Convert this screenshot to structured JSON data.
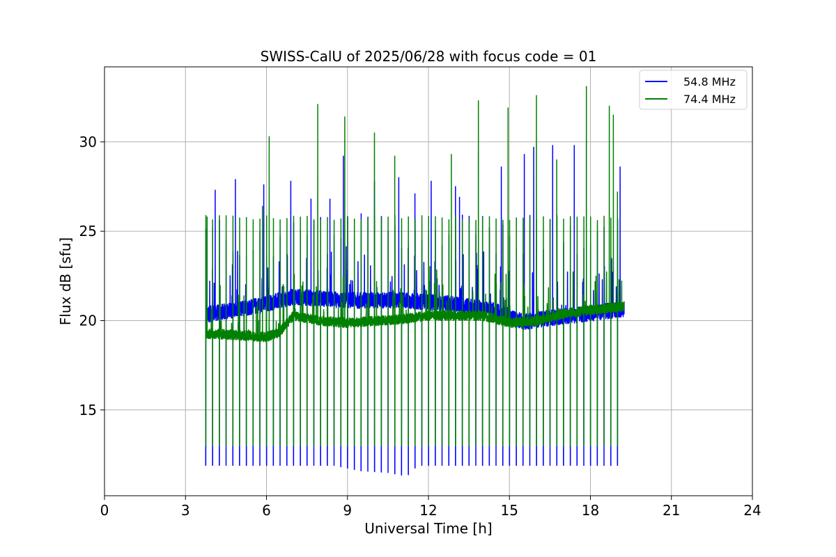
{
  "chart_data": {
    "type": "line",
    "title": "SWISS-CalU of 2025/06/28 with focus code = 01",
    "xlabel": "Universal Time [h]",
    "ylabel": "Flux dB [sfu]",
    "xlim": [
      0,
      24
    ],
    "ylim": [
      10.2,
      34.2
    ],
    "xticks": [
      0,
      3,
      6,
      9,
      12,
      15,
      18,
      21,
      24
    ],
    "yticks": [
      15,
      20,
      25,
      30
    ],
    "grid": true,
    "legend_position": "top-right",
    "data_start_hour": 3.75,
    "data_end_hour": 19.25,
    "calibration_cycle_hours": 0.25,
    "series": [
      {
        "name": "54.8 MHz",
        "color": "#0000ff",
        "baseline": [
          [
            3.75,
            20.2
          ],
          [
            5.0,
            20.5
          ],
          [
            6.0,
            20.8
          ],
          [
            7.0,
            21.2
          ],
          [
            9.0,
            21.0
          ],
          [
            11.0,
            21.0
          ],
          [
            13.0,
            20.8
          ],
          [
            14.5,
            20.4
          ],
          [
            15.5,
            19.8
          ],
          [
            16.5,
            20.0
          ],
          [
            19.25,
            20.5
          ]
        ],
        "calibration_low": [
          [
            3.75,
            11.9
          ],
          [
            8.5,
            11.9
          ],
          [
            9.5,
            11.6
          ],
          [
            10.5,
            11.5
          ],
          [
            11.2,
            11.3
          ],
          [
            11.6,
            11.9
          ],
          [
            14.0,
            11.9
          ],
          [
            19.0,
            11.9
          ]
        ],
        "spike_peaks": [
          [
            4.0,
            22.9
          ],
          [
            4.1,
            27.3
          ],
          [
            4.85,
            27.9
          ],
          [
            5.9,
            27.6
          ],
          [
            6.9,
            27.8
          ],
          [
            7.65,
            26.8
          ],
          [
            8.35,
            26.8
          ],
          [
            8.85,
            29.2
          ],
          [
            10.0,
            27.8
          ],
          [
            10.9,
            28.0
          ],
          [
            11.5,
            27.1
          ],
          [
            12.1,
            27.8
          ],
          [
            13.0,
            27.5
          ],
          [
            13.15,
            26.9
          ],
          [
            13.85,
            29.5
          ],
          [
            14.7,
            28.6
          ],
          [
            15.55,
            29.3
          ],
          [
            15.9,
            29.7
          ],
          [
            16.6,
            29.8
          ],
          [
            17.4,
            29.8
          ],
          [
            17.85,
            30.0
          ],
          [
            19.1,
            28.6
          ]
        ]
      },
      {
        "name": "74.4 MHz",
        "color": "#008000",
        "baseline": [
          [
            3.75,
            19.2
          ],
          [
            5.0,
            19.1
          ],
          [
            6.0,
            19.0
          ],
          [
            6.5,
            19.3
          ],
          [
            7.0,
            20.2
          ],
          [
            8.0,
            19.9
          ],
          [
            9.0,
            19.8
          ],
          [
            10.0,
            19.9
          ],
          [
            11.0,
            20.0
          ],
          [
            12.0,
            20.2
          ],
          [
            14.0,
            20.2
          ],
          [
            15.0,
            19.8
          ],
          [
            16.0,
            19.9
          ],
          [
            17.0,
            20.3
          ],
          [
            18.0,
            20.5
          ],
          [
            19.25,
            20.7
          ]
        ],
        "calibration_low": [
          [
            3.75,
            13.0
          ],
          [
            19.0,
            13.0
          ]
        ],
        "spike_peaks": [
          [
            3.8,
            25.8
          ],
          [
            5.85,
            26.4
          ],
          [
            6.1,
            30.3
          ],
          [
            7.9,
            32.1
          ],
          [
            8.9,
            31.4
          ],
          [
            10.0,
            30.5
          ],
          [
            10.75,
            29.2
          ],
          [
            12.85,
            29.3
          ],
          [
            13.85,
            32.3
          ],
          [
            14.95,
            31.9
          ],
          [
            16.0,
            32.6
          ],
          [
            16.75,
            29.0
          ],
          [
            17.85,
            33.1
          ],
          [
            18.7,
            32.0
          ],
          [
            18.85,
            31.5
          ],
          [
            19.0,
            27.2
          ]
        ]
      }
    ]
  }
}
